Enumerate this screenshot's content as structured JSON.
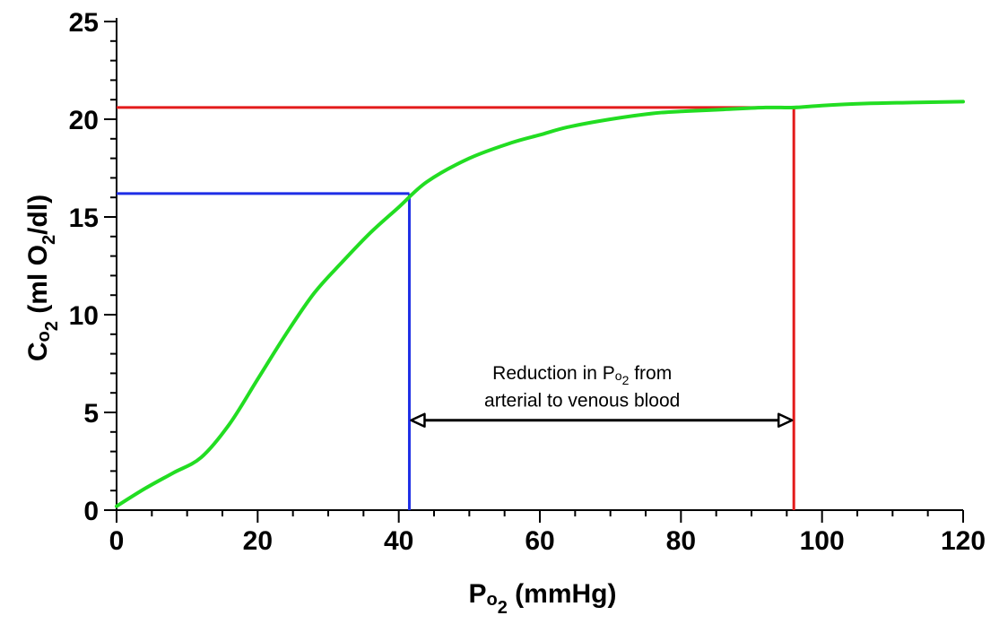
{
  "chart_data": {
    "type": "line",
    "title": "",
    "xlabel": {
      "main": "P",
      "sub_o": "o",
      "sub_2": "2",
      "unit": " (mmHg)"
    },
    "ylabel": {
      "main": "C",
      "sub_o": "o",
      "sub_2": "2",
      "unit_open": " (ml O",
      "unit_sub": "2",
      "unit_close": "/dl)"
    },
    "xlim": [
      0,
      120
    ],
    "ylim": [
      0,
      25
    ],
    "x_ticks": [
      0,
      20,
      40,
      60,
      80,
      100,
      120
    ],
    "y_ticks": [
      0,
      5,
      10,
      15,
      20,
      25
    ],
    "grid": false,
    "series": [
      {
        "color": "#22dd22",
        "x": [
          0,
          4,
          8,
          12,
          16,
          20,
          24,
          28,
          32,
          36,
          40,
          44,
          50,
          56,
          60,
          64,
          70,
          76,
          80,
          86,
          92,
          96,
          100,
          106,
          112,
          120
        ],
        "y": [
          0.2,
          1.1,
          1.9,
          2.7,
          4.4,
          6.7,
          9.0,
          11.1,
          12.7,
          14.2,
          15.5,
          16.8,
          18.0,
          18.8,
          19.2,
          19.6,
          20.0,
          20.3,
          20.4,
          20.5,
          20.6,
          20.6,
          20.7,
          20.8,
          20.85,
          20.9
        ]
      }
    ],
    "reference_lines": [
      {
        "name": "venous",
        "color": "#1e2ee6",
        "x": 41.5,
        "y": 16.2
      },
      {
        "name": "arterial",
        "color": "#e31b1b",
        "x": 96,
        "y": 20.6
      }
    ],
    "annotation": {
      "line1_a": "Reduction in P",
      "line1_sub_o": "o",
      "line1_sub_2": "2",
      "line1_b": " from",
      "line2": "arterial to venous blood",
      "arrow_from_x": 41.5,
      "arrow_to_x": 96,
      "arrow_y": 4.6,
      "text_x": 66,
      "line1_y": 6.7,
      "line2_y": 5.3
    },
    "colors": {
      "axis": "#000000",
      "arrow": "#000000"
    }
  }
}
